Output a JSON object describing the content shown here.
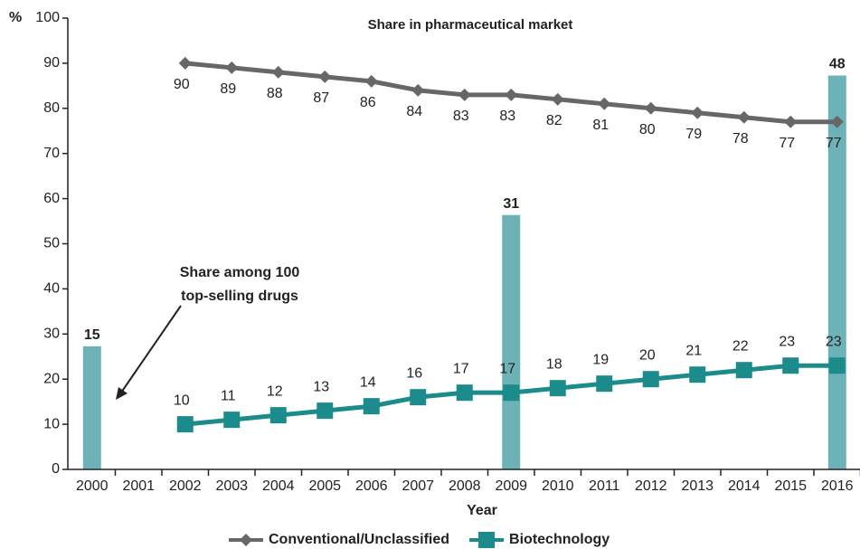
{
  "chart_data": {
    "type": "line",
    "title": "Share in pharmaceutical market",
    "y_unit": "%",
    "x_label": "Year",
    "annotation": [
      "Share among 100",
      "top-selling drugs"
    ],
    "categories": [
      "2000",
      "2001",
      "2002",
      "2003",
      "2004",
      "2005",
      "2006",
      "2007",
      "2008",
      "2009",
      "2010",
      "2011",
      "2012",
      "2013",
      "2014",
      "2015",
      "2016"
    ],
    "ylim": [
      0,
      100
    ],
    "yticks": [
      0,
      10,
      20,
      30,
      40,
      50,
      60,
      70,
      80,
      90,
      100
    ],
    "y2lim": [
      0,
      55
    ],
    "bars": {
      "axis": "y2",
      "color": "#6cb2b6",
      "values": [
        15,
        null,
        null,
        null,
        null,
        null,
        null,
        null,
        null,
        31,
        null,
        null,
        null,
        null,
        null,
        null,
        48
      ]
    },
    "series": [
      {
        "name": "Conventional/Unclassified",
        "color": "#676767",
        "marker": "diamond",
        "values": [
          null,
          null,
          90,
          89,
          88,
          87,
          86,
          84,
          83,
          83,
          82,
          81,
          80,
          79,
          78,
          77,
          77
        ]
      },
      {
        "name": "Biotechnology",
        "color": "#1b8b8c",
        "marker": "square",
        "values": [
          null,
          null,
          10,
          11,
          12,
          13,
          14,
          16,
          17,
          17,
          18,
          19,
          20,
          21,
          22,
          23,
          23
        ]
      }
    ]
  }
}
